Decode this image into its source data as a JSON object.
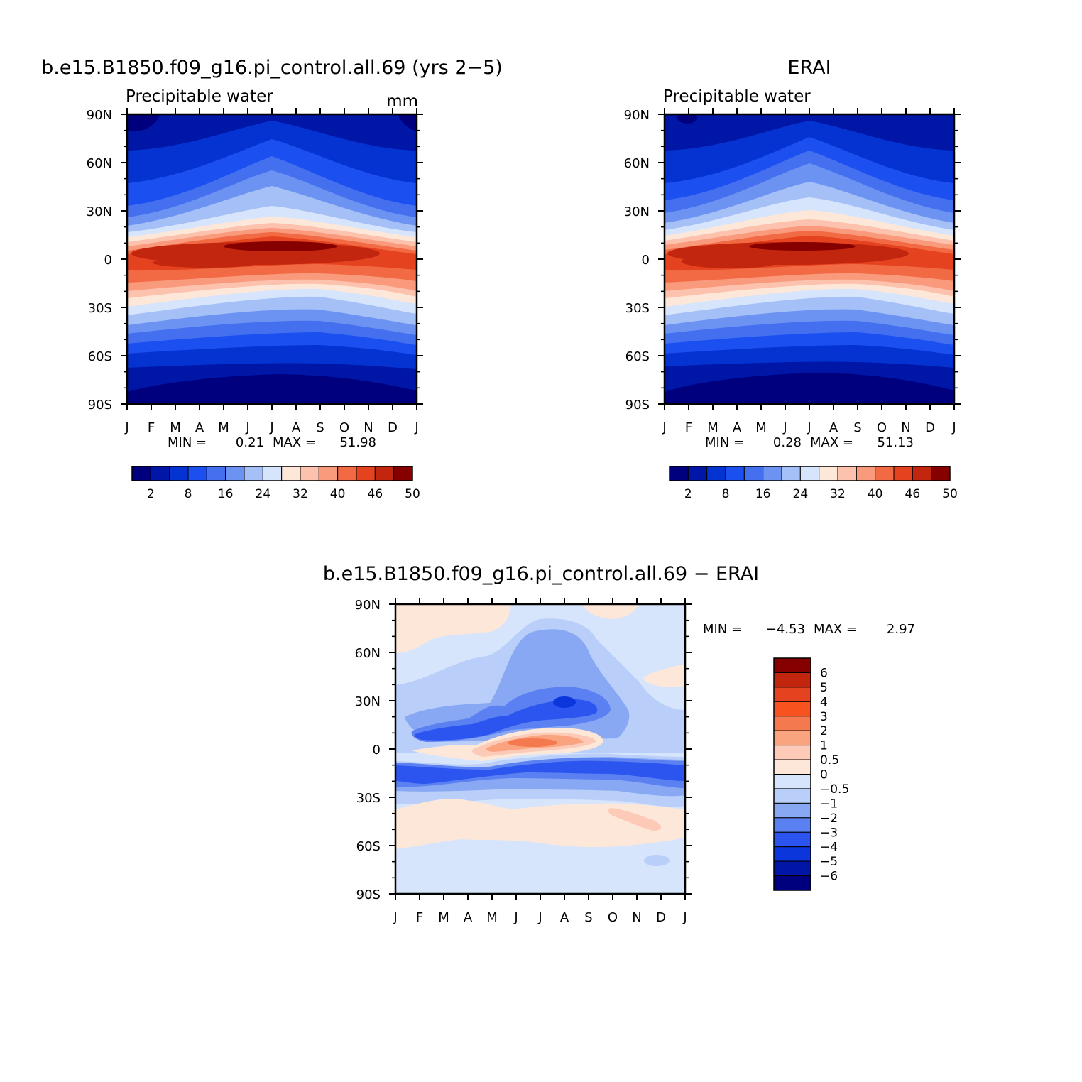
{
  "chart_data": [
    {
      "type": "heatmap",
      "title": "b.e15.B1850.f09_g16.pi_control.all.69 (yrs 2−5)",
      "subtitle": "Precipitable water",
      "units": "mm",
      "x_ticks": [
        "J",
        "F",
        "M",
        "A",
        "M",
        "J",
        "J",
        "A",
        "S",
        "O",
        "N",
        "D",
        "J"
      ],
      "y_ticks": [
        "90N",
        "60N",
        "30N",
        "0",
        "30S",
        "60S",
        "90S"
      ],
      "stats": {
        "min_label": "MIN =",
        "min": "0.21",
        "max_label": "MAX =",
        "max": "51.98"
      },
      "colorbar": {
        "orientation": "horizontal",
        "colors": [
          "#00007f",
          "#0016a6",
          "#0533d2",
          "#1c4ff0",
          "#4470ef",
          "#6d93f2",
          "#a5bff7",
          "#d6e5fc",
          "#fde7d8",
          "#fcc2ad",
          "#f99a7d",
          "#f26a44",
          "#e5421f",
          "#c2260e",
          "#860000"
        ],
        "labels": [
          "2",
          "8",
          "16",
          "24",
          "32",
          "40",
          "46",
          "50"
        ]
      },
      "approx_field": {
        "lat": [
          "90N",
          "60N",
          "30N",
          "0",
          "30S",
          "60S",
          "90S"
        ],
        "jan": [
          1,
          5,
          13,
          44,
          34,
          10,
          1
        ],
        "jul": [
          10,
          18,
          36,
          50,
          16,
          7,
          1
        ]
      }
    },
    {
      "type": "heatmap",
      "title": "ERAI",
      "subtitle": "Precipitable water",
      "x_ticks": [
        "J",
        "F",
        "M",
        "A",
        "M",
        "J",
        "J",
        "A",
        "S",
        "O",
        "N",
        "D",
        "J"
      ],
      "y_ticks": [
        "90N",
        "60N",
        "30N",
        "0",
        "30S",
        "60S",
        "90S"
      ],
      "stats": {
        "min_label": "MIN =",
        "min": "0.28",
        "max_label": "MAX =",
        "max": "51.13"
      },
      "colorbar": {
        "orientation": "horizontal",
        "colors": [
          "#00007f",
          "#0016a6",
          "#0533d2",
          "#1c4ff0",
          "#4470ef",
          "#6d93f2",
          "#a5bff7",
          "#d6e5fc",
          "#fde7d8",
          "#fcc2ad",
          "#f99a7d",
          "#f26a44",
          "#e5421f",
          "#c2260e",
          "#860000"
        ],
        "labels": [
          "2",
          "8",
          "16",
          "24",
          "32",
          "40",
          "46",
          "50"
        ]
      },
      "approx_field": {
        "lat": [
          "90N",
          "60N",
          "30N",
          "0",
          "30S",
          "60S",
          "90S"
        ],
        "jan": [
          2,
          6,
          14,
          44,
          34,
          10,
          1
        ],
        "jul": [
          10,
          19,
          37,
          49,
          17,
          7,
          1
        ]
      }
    },
    {
      "type": "heatmap",
      "title": "b.e15.B1850.f09_g16.pi_control.all.69 − ERAI",
      "x_ticks": [
        "J",
        "F",
        "M",
        "A",
        "M",
        "J",
        "J",
        "A",
        "S",
        "O",
        "N",
        "D",
        "J"
      ],
      "y_ticks": [
        "90N",
        "60N",
        "30N",
        "0",
        "30S",
        "60S",
        "90S"
      ],
      "stats": {
        "min_label": "MIN =",
        "min": "−4.53",
        "max_label": "MAX =",
        "max": "2.97"
      },
      "colorbar": {
        "orientation": "vertical",
        "colors": [
          "#860000",
          "#c2260e",
          "#e5421f",
          "#f8531f",
          "#f4794f",
          "#f9a47f",
          "#fccab6",
          "#fde7d8",
          "#d6e5fc",
          "#b9cff9",
          "#88a8f4",
          "#5a80f1",
          "#2c55ef",
          "#0b36dc",
          "#0016a6",
          "#00007f"
        ],
        "labels": [
          "6",
          "5",
          "4",
          "3",
          "2",
          "1",
          "0.5",
          "0",
          "−0.5",
          "−1",
          "−2",
          "−3",
          "−4",
          "−5",
          "−6"
        ]
      }
    }
  ]
}
